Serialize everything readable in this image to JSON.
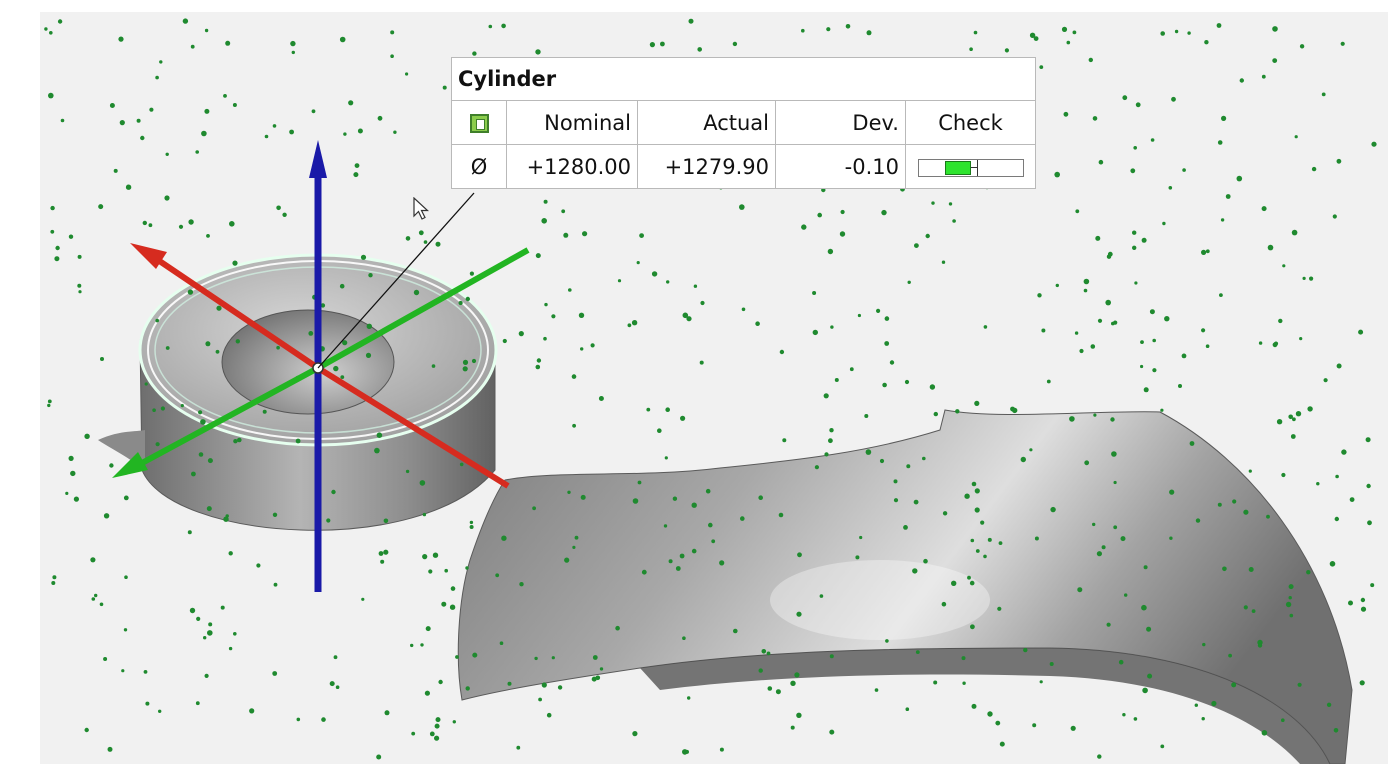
{
  "label": {
    "title": "Cylinder",
    "status_icon": "check-square-icon",
    "columns": [
      "Nominal",
      "Actual",
      "Dev.",
      "Check"
    ],
    "row": {
      "symbol": "Ø",
      "nominal": "+1280.00",
      "actual": "+1279.90",
      "deviation": "-0.10",
      "check_fraction": 0.5
    }
  },
  "colors": {
    "x_axis": "#d62b1f",
    "y_axis": "#22b522",
    "z_axis": "#1a1aa8",
    "points": "#1f8a2f",
    "pass": "#2ee32e"
  }
}
